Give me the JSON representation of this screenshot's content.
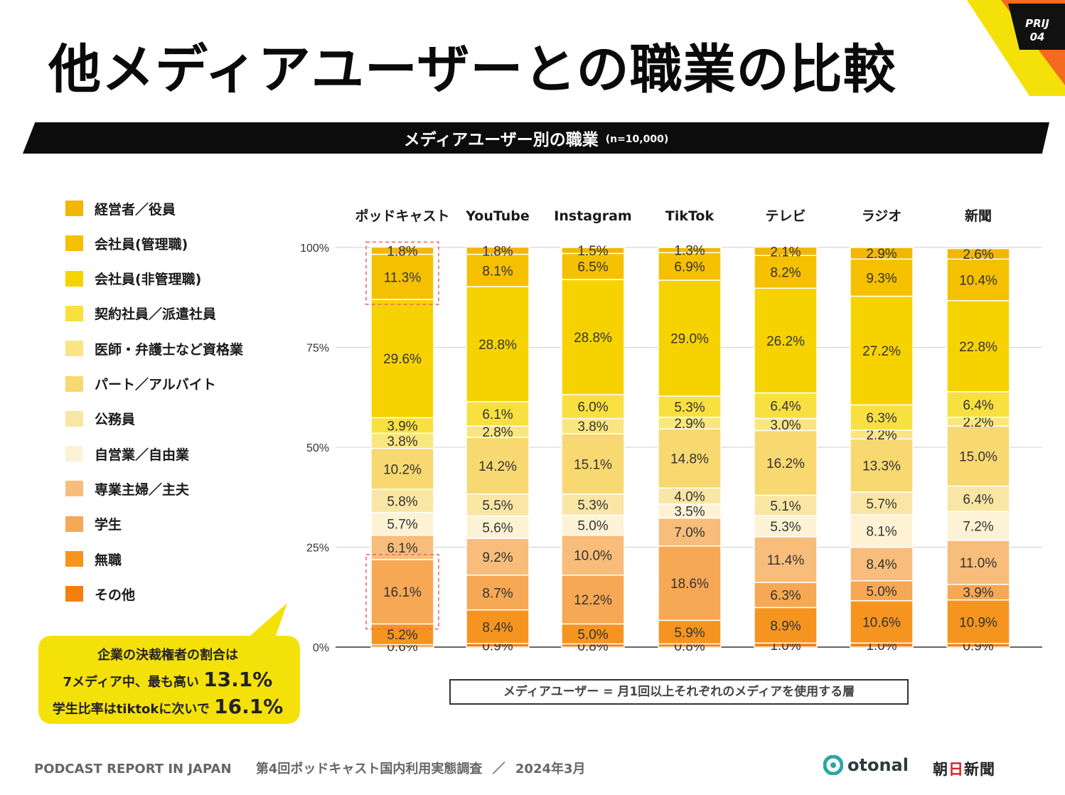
{
  "page": {
    "title": "他メディアユーザーとの職業の比較",
    "corner_label_line1": "PRIJ",
    "corner_label_line2": "04",
    "banner_title": "メディアユーザー別の職業",
    "banner_sample": "(n=10,000)",
    "callout": {
      "line1": "企業の決裁権者の割合は",
      "line2_prefix": "7メディア中、最も高い",
      "line2_value": "13.1%",
      "line3_prefix": "学生比率はtiktokに次いで",
      "line3_value": "16.1%"
    },
    "note": "メディアユーザー = 月1回以上それぞれのメディアを使用する層",
    "footer": {
      "report": "PODCAST REPORT IN JAPAN",
      "survey": "第4回ポッドキャスト国内利用実態調査",
      "slash": "／",
      "date": "2024年3月"
    },
    "brand_otonal": "otonal",
    "brand_asahi_1": "朝",
    "brand_asahi_2": "日",
    "brand_asahi_3": "新聞"
  },
  "colors": {
    "accent_yellow": "#f5e10a",
    "corner_orange": "#f36b21",
    "corner_red": "#e03a1f",
    "highlight_box": "#ef6a6a",
    "otonal_teal": "#2aa7a4"
  },
  "chart_data": {
    "type": "stacked_bar_100",
    "title": "メディアユーザー別の職業",
    "categories": [
      "ポッドキャスト",
      "YouTube",
      "Instagram",
      "TikTok",
      "テレビ",
      "ラジオ",
      "新聞"
    ],
    "y_ticks": [
      "0%",
      "25%",
      "50%",
      "75%",
      "100%"
    ],
    "ylim": [
      0,
      100
    ],
    "legend_position": "left",
    "highlight": [
      {
        "category": "ポッドキャスト",
        "series": [
          "経営者／役員",
          "会社員(管理職)"
        ]
      },
      {
        "category": "ポッドキャスト",
        "series": [
          "学生"
        ]
      }
    ],
    "series": [
      {
        "name": "経営者／役員",
        "color": "#f2b705",
        "values": [
          1.8,
          1.8,
          1.5,
          1.3,
          2.1,
          2.9,
          2.6
        ]
      },
      {
        "name": "会社員(管理職)",
        "color": "#f5c000",
        "values": [
          11.3,
          8.1,
          6.5,
          6.9,
          8.2,
          9.3,
          10.4
        ]
      },
      {
        "name": "会社員(非管理職)",
        "color": "#f6d300",
        "values": [
          29.6,
          28.8,
          28.8,
          29.0,
          26.2,
          27.2,
          22.8
        ]
      },
      {
        "name": "契約社員／派遣社員",
        "color": "#f8e040",
        "values": [
          3.9,
          6.1,
          6.0,
          5.3,
          6.4,
          6.3,
          6.4
        ]
      },
      {
        "name": "医師・弁護士など資格業",
        "color": "#f9e680",
        "values": [
          3.8,
          2.8,
          3.8,
          2.9,
          3.0,
          2.2,
          2.2
        ]
      },
      {
        "name": "パート／アルバイト",
        "color": "#f8d870",
        "values": [
          10.2,
          14.2,
          15.1,
          14.8,
          16.2,
          13.3,
          15.0
        ]
      },
      {
        "name": "公務員",
        "color": "#fae6a4",
        "values": [
          5.8,
          5.5,
          5.3,
          4.0,
          5.1,
          5.7,
          6.4
        ]
      },
      {
        "name": "自営業／自由業",
        "color": "#fdf2d4",
        "values": [
          5.7,
          5.6,
          5.0,
          3.5,
          5.3,
          8.1,
          7.2
        ]
      },
      {
        "name": "専業主婦／主夫",
        "color": "#f8bd7a",
        "values": [
          6.1,
          9.2,
          10.0,
          7.0,
          11.4,
          8.4,
          11.0
        ]
      },
      {
        "name": "学生",
        "color": "#f6a855",
        "values": [
          16.1,
          8.7,
          12.2,
          18.6,
          6.3,
          5.0,
          3.9
        ]
      },
      {
        "name": "無職",
        "color": "#f5951f",
        "values": [
          5.2,
          8.4,
          5.0,
          5.9,
          8.9,
          10.6,
          10.9
        ]
      },
      {
        "name": "その他",
        "color": "#f47f10",
        "values": [
          0.6,
          0.9,
          0.8,
          0.8,
          1.0,
          1.0,
          0.9
        ]
      }
    ]
  }
}
